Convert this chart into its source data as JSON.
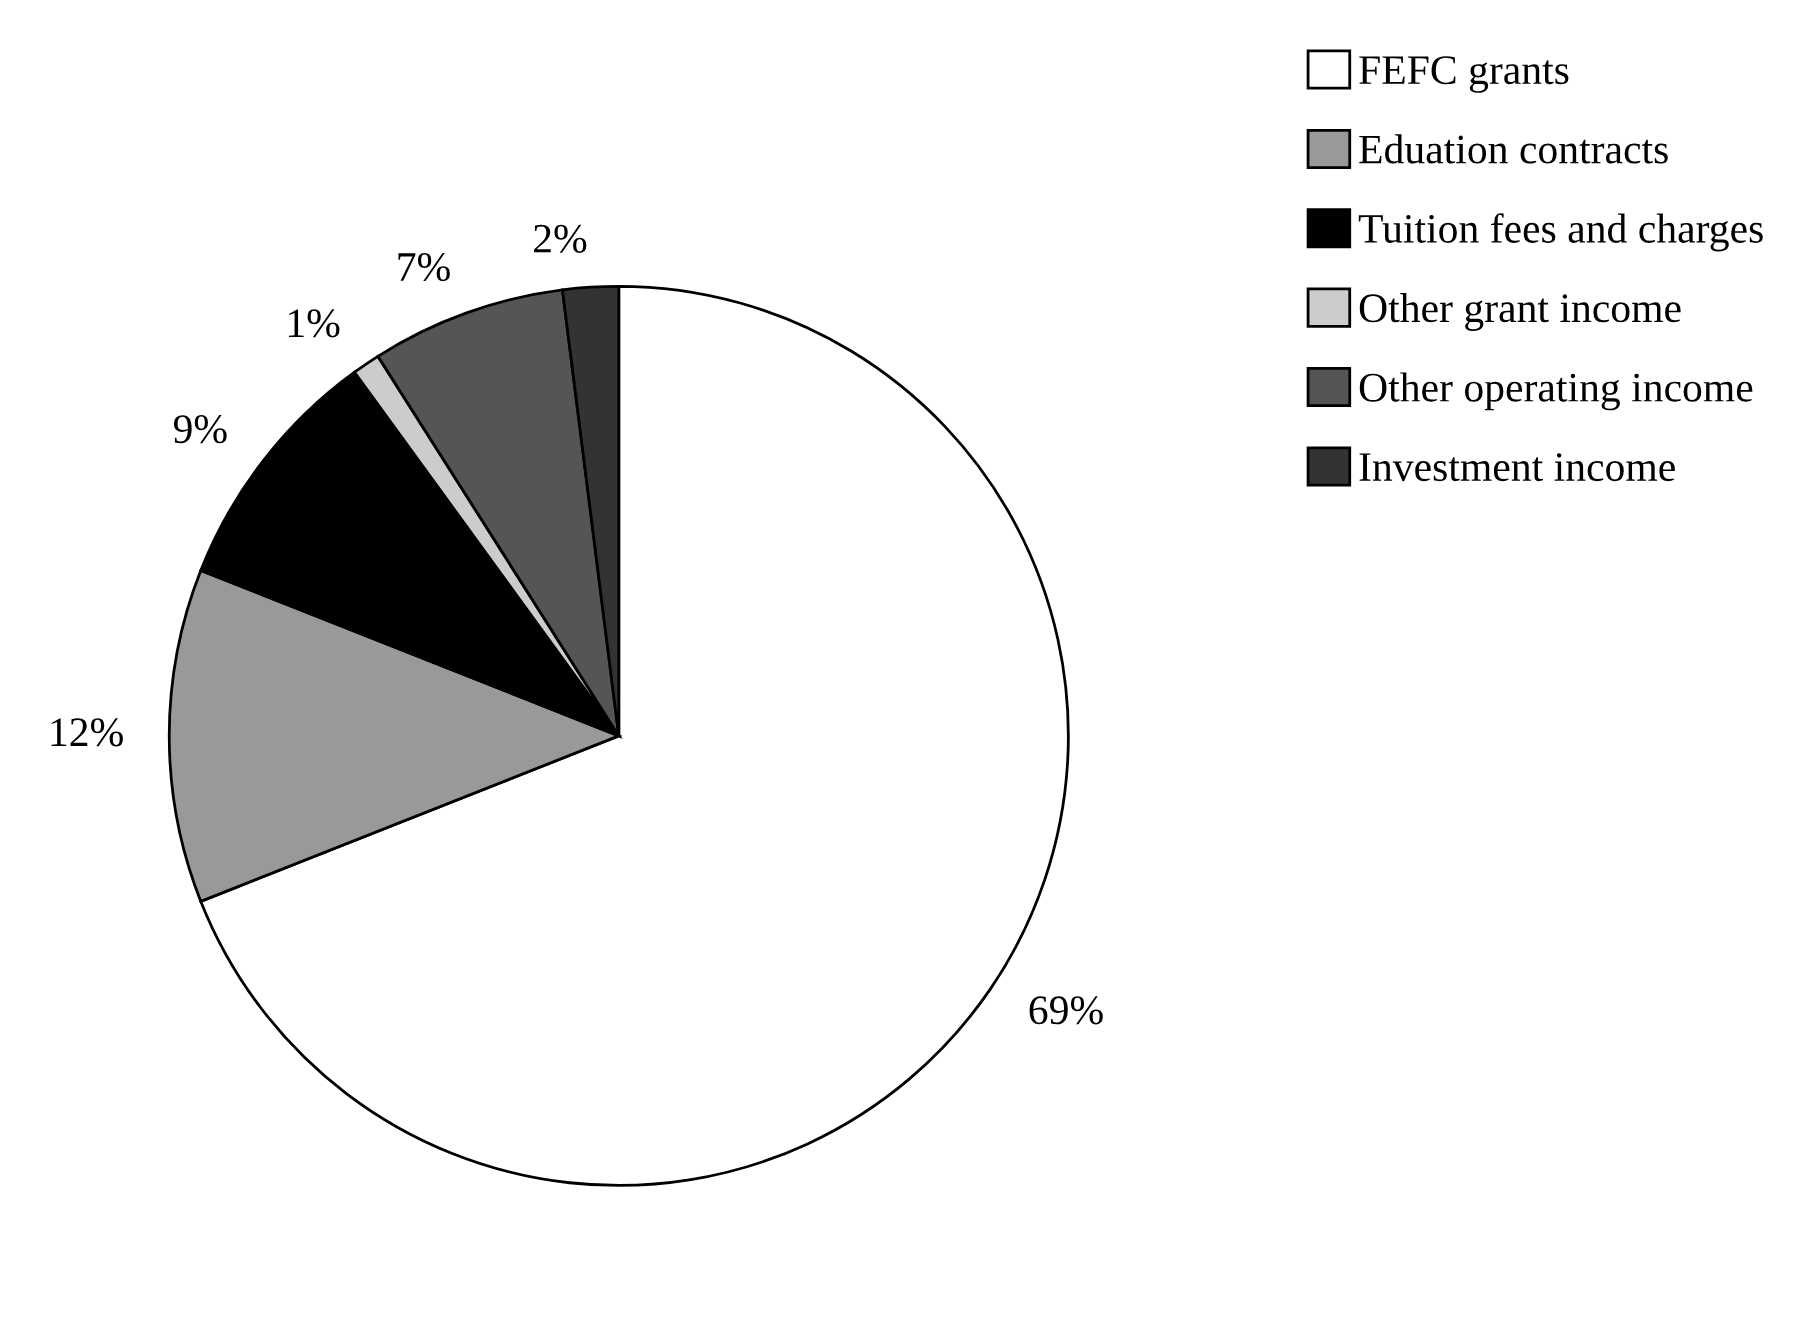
{
  "chart_data": {
    "type": "pie",
    "categories": [
      "FEFC grants",
      "Eduation contracts",
      "Tuition fees and charges",
      "Other grant income",
      "Other operating income",
      "Investment income"
    ],
    "values": [
      69,
      12,
      9,
      1,
      7,
      2
    ],
    "value_labels": [
      "69%",
      "12%",
      "9%",
      "1%",
      "7%",
      "2%"
    ],
    "colors": [
      "#ffffff",
      "#999999",
      "#000000",
      "#cccccc",
      "#555555",
      "#333333"
    ],
    "legend": "top right"
  }
}
